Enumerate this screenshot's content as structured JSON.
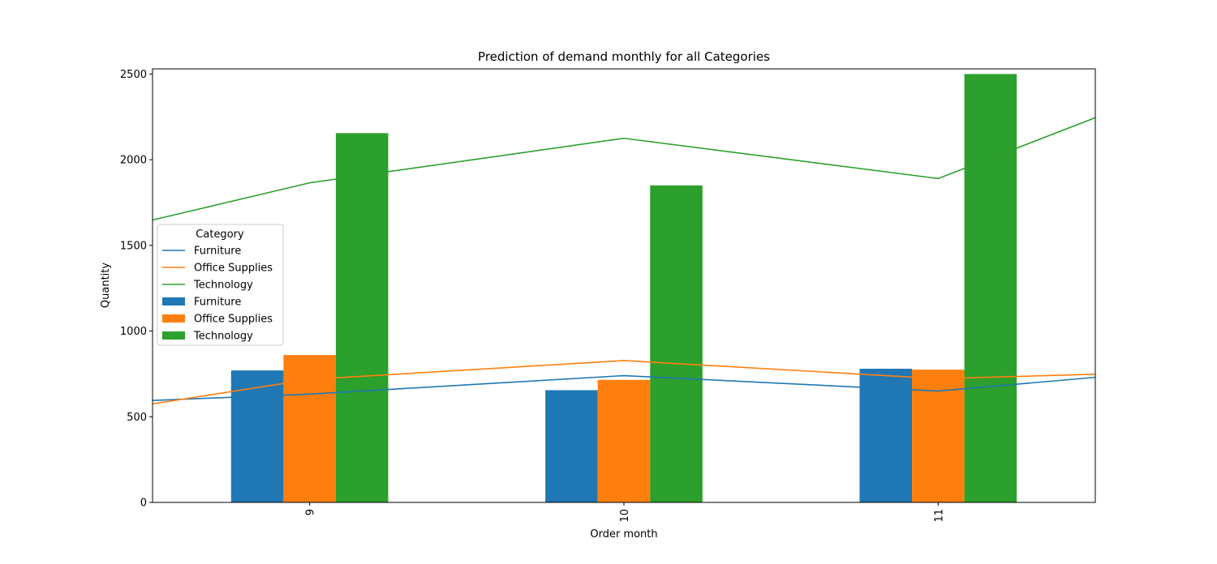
{
  "chart_data": {
    "type": "bar",
    "title": "Prediction of demand monthly for all Categories",
    "xlabel": "Order month",
    "ylabel": "Quantity",
    "categories": [
      "9",
      "10",
      "11"
    ],
    "ylim": [
      0,
      2530
    ],
    "yticks": [
      0,
      500,
      1000,
      1500,
      2000,
      2500
    ],
    "grid": false,
    "legend_title": "Category",
    "legend_position": "center-left",
    "bar_series": [
      {
        "name": "Furniture",
        "color": "#1f77b4",
        "values": [
          770,
          655,
          780
        ]
      },
      {
        "name": "Office Supplies",
        "color": "#ff7f0e",
        "values": [
          860,
          715,
          775
        ]
      },
      {
        "name": "Technology",
        "color": "#2ca02c",
        "values": [
          2155,
          1850,
          2500
        ]
      }
    ],
    "line_series": [
      {
        "name": "Furniture",
        "color": "#1f77b4",
        "x": [
          8.5,
          9,
          10,
          11,
          11.5
        ],
        "values": [
          595,
          632,
          740,
          650,
          730
        ]
      },
      {
        "name": "Office Supplies",
        "color": "#ff7f0e",
        "x": [
          8.5,
          9,
          10,
          11,
          11.5
        ],
        "values": [
          575,
          718,
          828,
          722,
          748
        ]
      },
      {
        "name": "Technology",
        "color": "#2ca02c",
        "x": [
          8.5,
          9,
          10,
          11,
          11.5
        ],
        "values": [
          1648,
          1865,
          2125,
          1890,
          2245
        ]
      }
    ]
  }
}
